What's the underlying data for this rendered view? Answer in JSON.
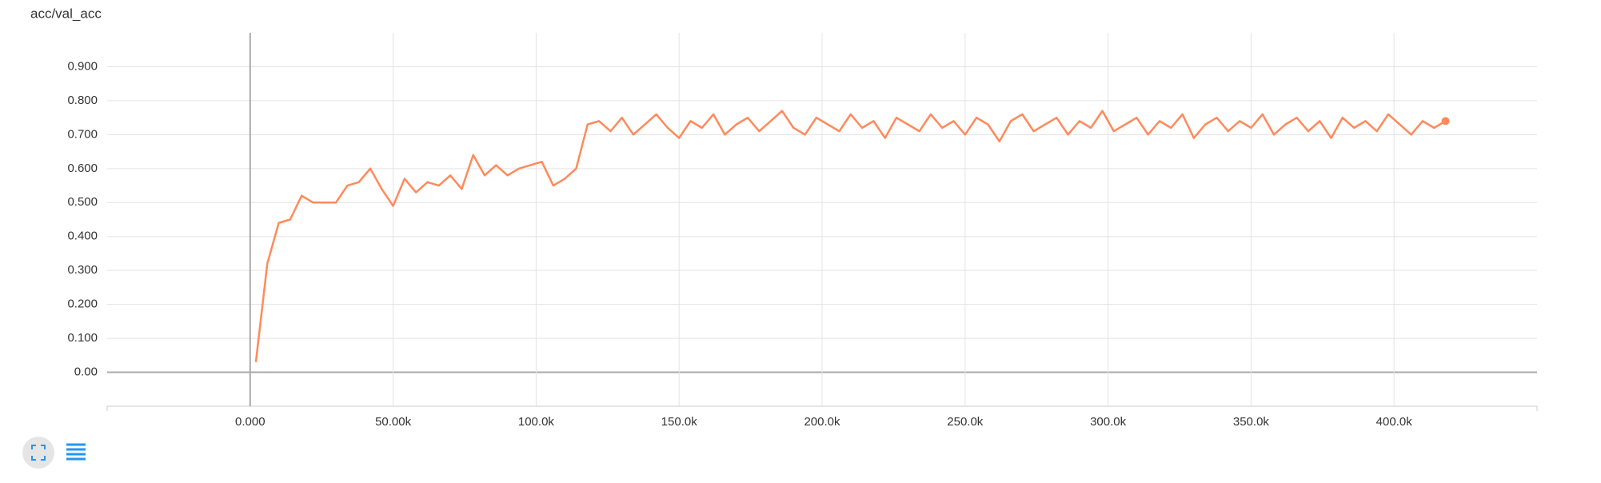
{
  "chart_data": {
    "type": "line",
    "title": "acc/val_acc",
    "x": [
      2000,
      6000,
      10000,
      14000,
      18000,
      22000,
      26000,
      30000,
      34000,
      38000,
      42000,
      46000,
      50000,
      54000,
      58000,
      62000,
      66000,
      70000,
      74000,
      78000,
      82000,
      86000,
      90000,
      94000,
      98000,
      102000,
      106000,
      110000,
      114000,
      118000,
      122000,
      126000,
      130000,
      134000,
      138000,
      142000,
      146000,
      150000,
      154000,
      158000,
      162000,
      166000,
      170000,
      174000,
      178000,
      182000,
      186000,
      190000,
      194000,
      198000,
      202000,
      206000,
      210000,
      214000,
      218000,
      222000,
      226000,
      230000,
      234000,
      238000,
      242000,
      246000,
      250000,
      254000,
      258000,
      262000,
      266000,
      270000,
      274000,
      278000,
      282000,
      286000,
      290000,
      294000,
      298000,
      302000,
      306000,
      310000,
      314000,
      318000,
      322000,
      326000,
      330000,
      334000,
      338000,
      342000,
      346000,
      350000,
      354000,
      358000,
      362000,
      366000,
      370000,
      374000,
      378000,
      382000,
      386000,
      390000,
      394000,
      398000,
      402000,
      406000,
      410000,
      414000,
      418000
    ],
    "series": [
      {
        "color": "#ff8a5b",
        "values": [
          0.03,
          0.32,
          0.44,
          0.45,
          0.52,
          0.5,
          0.5,
          0.5,
          0.55,
          0.56,
          0.6,
          0.54,
          0.49,
          0.57,
          0.53,
          0.56,
          0.55,
          0.58,
          0.54,
          0.64,
          0.58,
          0.61,
          0.58,
          0.6,
          0.61,
          0.62,
          0.55,
          0.57,
          0.6,
          0.73,
          0.74,
          0.71,
          0.75,
          0.7,
          0.73,
          0.76,
          0.72,
          0.69,
          0.74,
          0.72,
          0.76,
          0.7,
          0.73,
          0.75,
          0.71,
          0.74,
          0.77,
          0.72,
          0.7,
          0.75,
          0.73,
          0.71,
          0.76,
          0.72,
          0.74,
          0.69,
          0.75,
          0.73,
          0.71,
          0.76,
          0.72,
          0.74,
          0.7,
          0.75,
          0.73,
          0.68,
          0.74,
          0.76,
          0.71,
          0.73,
          0.75,
          0.7,
          0.74,
          0.72,
          0.77,
          0.71,
          0.73,
          0.75,
          0.7,
          0.74,
          0.72,
          0.76,
          0.69,
          0.73,
          0.75,
          0.71,
          0.74,
          0.72,
          0.76,
          0.7,
          0.73,
          0.75,
          0.71,
          0.74,
          0.69,
          0.75,
          0.72,
          0.74,
          0.71,
          0.76,
          0.73,
          0.7,
          0.74,
          0.72,
          0.74
        ]
      }
    ],
    "xlim": [
      -50000,
      450000
    ],
    "xticks": [
      {
        "value": 0,
        "label": "0.000"
      },
      {
        "value": 50000,
        "label": "50.00k"
      },
      {
        "value": 100000,
        "label": "100.0k"
      },
      {
        "value": 150000,
        "label": "150.0k"
      },
      {
        "value": 200000,
        "label": "200.0k"
      },
      {
        "value": 250000,
        "label": "250.0k"
      },
      {
        "value": 300000,
        "label": "300.0k"
      },
      {
        "value": 350000,
        "label": "350.0k"
      },
      {
        "value": 400000,
        "label": "400.0k"
      }
    ],
    "ylim": [
      -0.1,
      1.0
    ],
    "yticks": [
      {
        "value": 0,
        "label": "0.00"
      },
      {
        "value": 0.1,
        "label": "0.100"
      },
      {
        "value": 0.2,
        "label": "0.200"
      },
      {
        "value": 0.3,
        "label": "0.300"
      },
      {
        "value": 0.4,
        "label": "0.400"
      },
      {
        "value": 0.5,
        "label": "0.500"
      },
      {
        "value": 0.6,
        "label": "0.600"
      },
      {
        "value": 0.7,
        "label": "0.700"
      },
      {
        "value": 0.8,
        "label": "0.800"
      },
      {
        "value": 0.9,
        "label": "0.900"
      }
    ],
    "grid": true
  }
}
